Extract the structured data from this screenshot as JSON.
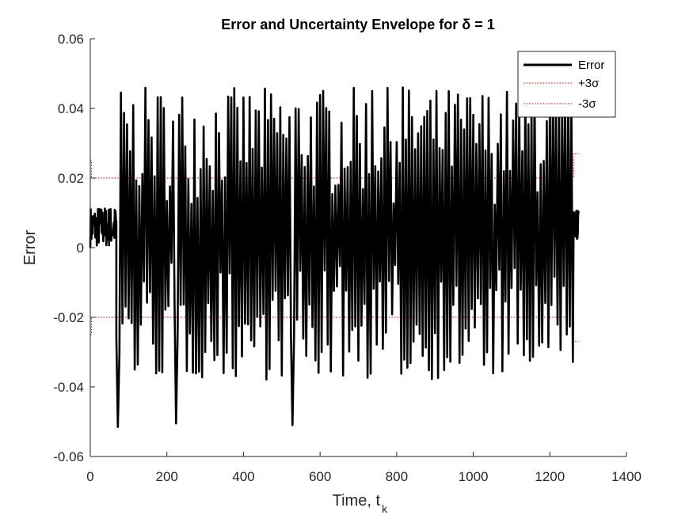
{
  "chart_data": {
    "type": "line",
    "title": "Error and Uncertainty Envelope for δ = 1",
    "xlabel": "Time, t",
    "xlabel_subscript": "k",
    "ylabel": "Error",
    "xlim": [
      0,
      1400
    ],
    "ylim": [
      -0.06,
      0.06
    ],
    "x_ticks": [
      "0",
      "200",
      "400",
      "600",
      "800",
      "1000",
      "1200",
      "1400"
    ],
    "y_ticks": [
      "0.06",
      "0.04",
      "0.02",
      "0",
      "-0.02",
      "-0.04",
      "-0.06"
    ],
    "legend": {
      "placement": "top-right",
      "entries": [
        "Error",
        "+3σ",
        "-3σ"
      ]
    },
    "grid": false,
    "series": [
      {
        "name": "Error",
        "color": "#000000",
        "style": "solid",
        "x_range": [
          0,
          1275
        ],
        "phases": [
          {
            "x_range": [
              0,
              68
            ],
            "approx_min": 0.0,
            "approx_max": 0.012
          },
          {
            "x_range": [
              68,
              1262
            ],
            "approx_min": -0.051,
            "approx_max": 0.046
          },
          {
            "x_range": [
              1262,
              1275
            ],
            "approx_min": 0.002,
            "approx_max": 0.011
          }
        ],
        "extremes": [
          {
            "x": 72,
            "y": -0.0515
          },
          {
            "x": 226,
            "y": -0.0505
          },
          {
            "x": 530,
            "y": -0.051
          },
          {
            "x": 815,
            "y": 0.046
          },
          {
            "x": 735,
            "y": 0.045
          },
          {
            "x": 1160,
            "y": 0.045
          }
        ]
      },
      {
        "name": "+3σ",
        "color": "#cc0000",
        "style": "dotted",
        "points": [
          [
            0,
            0.025
          ],
          [
            3,
            0.025
          ],
          [
            3,
            0.02
          ],
          [
            1262,
            0.02
          ],
          [
            1262,
            0.027
          ],
          [
            1275,
            0.027
          ]
        ]
      },
      {
        "name": "-3σ",
        "color": "#cc0000",
        "style": "dotted",
        "points": [
          [
            0,
            -0.025
          ],
          [
            3,
            -0.025
          ],
          [
            3,
            -0.02
          ],
          [
            1262,
            -0.02
          ],
          [
            1262,
            -0.027
          ],
          [
            1275,
            -0.027
          ]
        ]
      }
    ]
  }
}
